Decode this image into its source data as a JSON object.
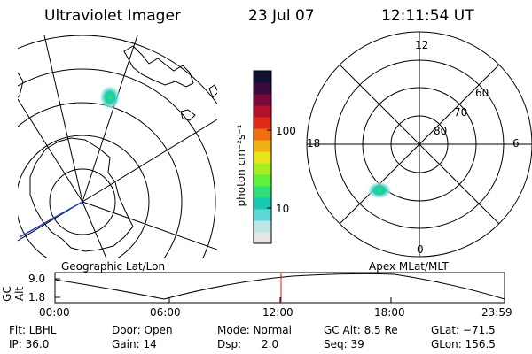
{
  "header": {
    "title": "Ultraviolet Imager",
    "date": "23 Jul 07",
    "time": "12:11:54 UT"
  },
  "left_panel": {
    "label": "Geographic Lat/Lon"
  },
  "right_panel": {
    "label": "Apex MLat/MLT",
    "mlt_labels": {
      "top": "12",
      "left": "18",
      "right": "6",
      "bottom": "0"
    },
    "lat_labels": [
      "60",
      "70",
      "80"
    ]
  },
  "colorbar": {
    "unit_label": "photon cm⁻²s⁻¹",
    "tick_100": "100",
    "tick_10": "10",
    "colors": [
      "#e6e6e6",
      "#bfe6e6",
      "#5fd6d6",
      "#19c8b0",
      "#2ee07a",
      "#5ef03a",
      "#a6ec20",
      "#e8e41a",
      "#f0b012",
      "#f06e0e",
      "#e02a1a",
      "#b4102a",
      "#7a0a3a",
      "#3a0a3e",
      "#101030"
    ]
  },
  "altitude_plot": {
    "ylabel": "GC Alt",
    "y_ticks": [
      "9.0",
      "1.8"
    ],
    "x_ticks": [
      "00:00",
      "06:00",
      "12:00",
      "18:00",
      "23:59"
    ],
    "marker_color": "#e01010"
  },
  "info": {
    "flt": "Flt: LBHL",
    "ip": "IP: 36.0",
    "door": "Door: Open",
    "gain": "Gain: 14",
    "mode": "Mode: Normal",
    "dsp": "Dsp:      2.0",
    "gc_alt": "GC Alt: 8.5 Re",
    "seq": "Seq: 39",
    "glat": "GLat: −71.5",
    "glon": "GLon: 156.5"
  }
}
